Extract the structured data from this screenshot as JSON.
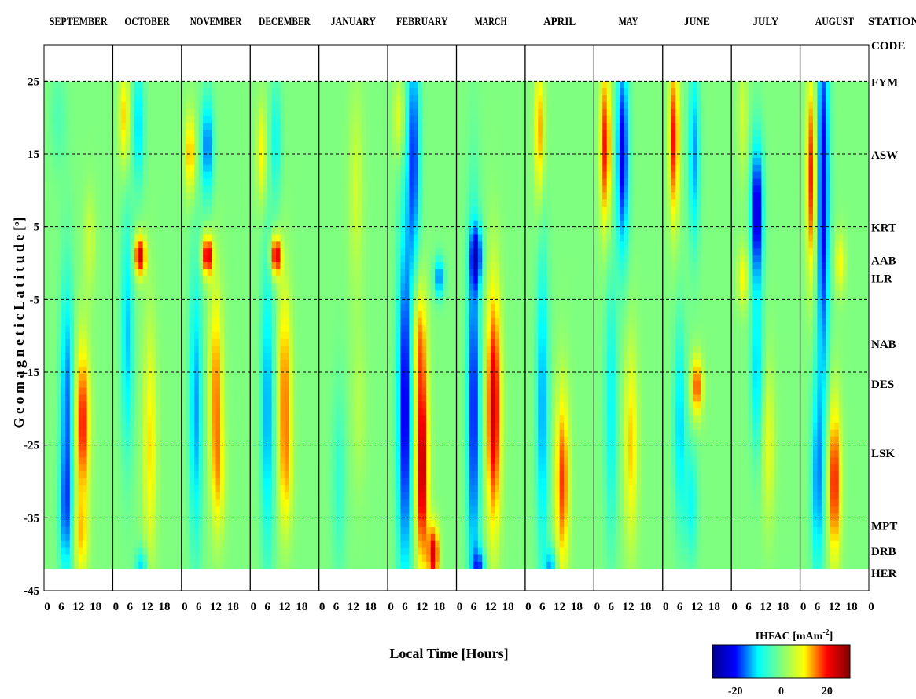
{
  "chart_data": {
    "type": "heatmap",
    "title": "",
    "xlabel": "Local Time [Hours]",
    "ylabel": "Geomagnetic Latitude [°]",
    "ylabel_parts": {
      "text": "G e o m a g n e t i c   L a t i t u d e  [",
      "sup": "o",
      "close": "]"
    },
    "months": [
      "SEPTEMBER",
      "OCTOBER",
      "NOVEMBER",
      "DECEMBER",
      "JANUARY",
      "FEBRUARY",
      "MARCH",
      "APRIL",
      "MAY",
      "JUNE",
      "JULY",
      "AUGUST"
    ],
    "panel_xticks": [
      0,
      6,
      12,
      18
    ],
    "final_xtick": 0,
    "xlim": [
      0,
      24
    ],
    "ylim": [
      -45,
      30
    ],
    "yticks": [
      25,
      15,
      5,
      -5,
      -15,
      -25,
      -35,
      -45
    ],
    "data_ylim": [
      -42,
      25
    ],
    "grid": "dashed horizontal lines at y ticks",
    "station_header": {
      "line1": "STATION",
      "line2": "CODE"
    },
    "stations": [
      {
        "code": "FYM",
        "lat": 25
      },
      {
        "code": "ASW",
        "lat": 15
      },
      {
        "code": "KRT",
        "lat": 5
      },
      {
        "code": "AAB",
        "lat": 0.5
      },
      {
        "code": "ILR",
        "lat": -2
      },
      {
        "code": "NAB",
        "lat": -11
      },
      {
        "code": "DES",
        "lat": -16.5
      },
      {
        "code": "LSK",
        "lat": -26
      },
      {
        "code": "MPT",
        "lat": -36
      },
      {
        "code": "DRB",
        "lat": -39.5
      },
      {
        "code": "HER",
        "lat": -42.5
      }
    ],
    "colorbar": {
      "label": "IHFAC [mAm",
      "label_sup": "-2",
      "label_close": "]",
      "range": [
        -30,
        30
      ],
      "ticks": [
        -20,
        0,
        20
      ],
      "colormap": "jet",
      "colors": [
        "#00008f",
        "#0000ff",
        "#00ffff",
        "#7fff7f",
        "#ffff00",
        "#ff0000",
        "#800000"
      ]
    },
    "features": [
      {
        "m": 0,
        "t": 8,
        "l": -20,
        "v": -16,
        "st": 1.6,
        "sl": 13
      },
      {
        "m": 0,
        "t": 7.5,
        "l": -35,
        "v": -10,
        "st": 1.6,
        "sl": 6
      },
      {
        "m": 0,
        "t": 13.5,
        "l": -22,
        "v": 20,
        "st": 1.8,
        "sl": 8
      },
      {
        "m": 0,
        "t": 13,
        "l": -38,
        "v": 10,
        "st": 1.8,
        "sl": 4
      },
      {
        "m": 0,
        "t": 16,
        "l": 3,
        "v": 6,
        "st": 1.5,
        "sl": 5
      },
      {
        "m": 0,
        "t": 5,
        "l": 20,
        "v": -4,
        "st": 2,
        "sl": 5
      },
      {
        "m": 1,
        "t": 9,
        "l": 19,
        "v": -12,
        "st": 1.4,
        "sl": 6
      },
      {
        "m": 1,
        "t": 4,
        "l": 20,
        "v": 12,
        "st": 1.3,
        "sl": 5
      },
      {
        "m": 1,
        "t": 9.5,
        "l": 1,
        "v": 24,
        "st": 1.4,
        "sl": 2
      },
      {
        "m": 1,
        "t": 5,
        "l": -10,
        "v": -12,
        "st": 1.5,
        "sl": 12
      },
      {
        "m": 1,
        "t": 13,
        "l": -25,
        "v": 11,
        "st": 1.7,
        "sl": 12
      },
      {
        "m": 1,
        "t": 10,
        "l": -42,
        "v": -12,
        "st": 1.5,
        "sl": 2
      },
      {
        "m": 2,
        "t": 9,
        "l": 16,
        "v": -16,
        "st": 1.5,
        "sl": 5
      },
      {
        "m": 2,
        "t": 3,
        "l": 15,
        "v": 14,
        "st": 1.3,
        "sl": 4
      },
      {
        "m": 2,
        "t": 9,
        "l": 1,
        "v": 24,
        "st": 1.3,
        "sl": 2
      },
      {
        "m": 2,
        "t": 5,
        "l": -20,
        "v": -14,
        "st": 1.6,
        "sl": 14
      },
      {
        "m": 2,
        "t": 12,
        "l": -17,
        "v": 15,
        "st": 1.7,
        "sl": 10
      },
      {
        "m": 2,
        "t": 13,
        "l": -30,
        "v": 8,
        "st": 1.7,
        "sl": 6
      },
      {
        "m": 3,
        "t": 9,
        "l": 17,
        "v": -9,
        "st": 1.4,
        "sl": 6
      },
      {
        "m": 3,
        "t": 4,
        "l": 15,
        "v": 10,
        "st": 1.3,
        "sl": 5
      },
      {
        "m": 3,
        "t": 9,
        "l": 1,
        "v": 24,
        "st": 1.3,
        "sl": 2
      },
      {
        "m": 3,
        "t": 6,
        "l": -20,
        "v": -14,
        "st": 1.6,
        "sl": 15
      },
      {
        "m": 3,
        "t": 12,
        "l": -17,
        "v": 15,
        "st": 1.7,
        "sl": 10
      },
      {
        "m": 3,
        "t": 12.5,
        "l": -30,
        "v": 7,
        "st": 1.7,
        "sl": 6
      },
      {
        "m": 4,
        "t": 7,
        "l": -30,
        "v": -6,
        "st": 1.7,
        "sl": 10
      },
      {
        "m": 4,
        "t": 13,
        "l": 10,
        "v": 6,
        "st": 1.8,
        "sl": 10
      },
      {
        "m": 4,
        "t": 14,
        "l": -20,
        "v": 4,
        "st": 1.8,
        "sl": 8
      },
      {
        "m": 5,
        "t": 9,
        "l": 15,
        "v": -18,
        "st": 1.6,
        "sl": 12
      },
      {
        "m": 5,
        "t": 4,
        "l": 20,
        "v": 8,
        "st": 1.4,
        "sl": 4
      },
      {
        "m": 5,
        "t": 6,
        "l": -20,
        "v": -22,
        "st": 1.8,
        "sl": 18
      },
      {
        "m": 5,
        "t": 12,
        "l": -28,
        "v": 26,
        "st": 1.6,
        "sl": 10
      },
      {
        "m": 5,
        "t": 11,
        "l": -10,
        "v": 12,
        "st": 1.8,
        "sl": 6
      },
      {
        "m": 5,
        "t": 16,
        "l": -40,
        "v": 22,
        "st": 1.4,
        "sl": 3
      },
      {
        "m": 5,
        "t": 18,
        "l": -2,
        "v": -16,
        "st": 1.3,
        "sl": 2
      },
      {
        "m": 6,
        "t": 6,
        "l": -20,
        "v": -20,
        "st": 1.6,
        "sl": 18
      },
      {
        "m": 6,
        "t": 13,
        "l": -20,
        "v": 24,
        "st": 1.8,
        "sl": 12
      },
      {
        "m": 6,
        "t": 7,
        "l": 1,
        "v": -18,
        "st": 1.5,
        "sl": 3
      },
      {
        "m": 6,
        "t": 8,
        "l": -42,
        "v": -15,
        "st": 1.5,
        "sl": 2
      },
      {
        "m": 7,
        "t": 5,
        "l": 18,
        "v": 14,
        "st": 1.3,
        "sl": 7
      },
      {
        "m": 7,
        "t": 6,
        "l": -20,
        "v": -14,
        "st": 1.5,
        "sl": 16
      },
      {
        "m": 7,
        "t": 13,
        "l": -30,
        "v": 18,
        "st": 1.7,
        "sl": 9
      },
      {
        "m": 7,
        "t": 9,
        "l": -42,
        "v": -14,
        "st": 1.4,
        "sl": 2
      },
      {
        "m": 8,
        "t": 10,
        "l": 15,
        "v": -22,
        "st": 1.5,
        "sl": 10
      },
      {
        "m": 8,
        "t": 4,
        "l": 16,
        "v": 20,
        "st": 1.3,
        "sl": 8
      },
      {
        "m": 8,
        "t": 6,
        "l": -20,
        "v": -10,
        "st": 1.5,
        "sl": 14
      },
      {
        "m": 8,
        "t": 13,
        "l": -25,
        "v": 12,
        "st": 1.7,
        "sl": 10
      },
      {
        "m": 9,
        "t": 11,
        "l": 15,
        "v": -14,
        "st": 1.4,
        "sl": 9
      },
      {
        "m": 9,
        "t": 4,
        "l": 17,
        "v": 20,
        "st": 1.2,
        "sl": 8
      },
      {
        "m": 9,
        "t": 6,
        "l": -22,
        "v": -12,
        "st": 1.5,
        "sl": 10
      },
      {
        "m": 9,
        "t": 12,
        "l": -17,
        "v": 18,
        "st": 1.5,
        "sl": 3
      },
      {
        "m": 9,
        "t": 10,
        "l": -33,
        "v": -9,
        "st": 1.6,
        "sl": 6
      },
      {
        "m": 10,
        "t": 9,
        "l": 7,
        "v": -24,
        "st": 1.5,
        "sl": 7
      },
      {
        "m": 10,
        "t": 4,
        "l": 20,
        "v": 6,
        "st": 1.3,
        "sl": 6
      },
      {
        "m": 10,
        "t": 9,
        "l": -15,
        "v": -12,
        "st": 1.5,
        "sl": 8
      },
      {
        "m": 10,
        "t": 13,
        "l": -25,
        "v": 8,
        "st": 1.6,
        "sl": 8
      },
      {
        "m": 10,
        "t": 4,
        "l": -2,
        "v": 10,
        "st": 1.3,
        "sl": 3
      },
      {
        "m": 11,
        "t": 8,
        "l": 10,
        "v": -22,
        "st": 1.6,
        "sl": 20
      },
      {
        "m": 11,
        "t": 4,
        "l": 12,
        "v": 20,
        "st": 1.3,
        "sl": 10
      },
      {
        "m": 11,
        "t": 6,
        "l": -30,
        "v": -14,
        "st": 1.5,
        "sl": 10
      },
      {
        "m": 11,
        "t": 12,
        "l": -30,
        "v": 20,
        "st": 1.6,
        "sl": 8
      },
      {
        "m": 11,
        "t": 14,
        "l": 0,
        "v": 10,
        "st": 1.3,
        "sl": 3
      }
    ]
  }
}
